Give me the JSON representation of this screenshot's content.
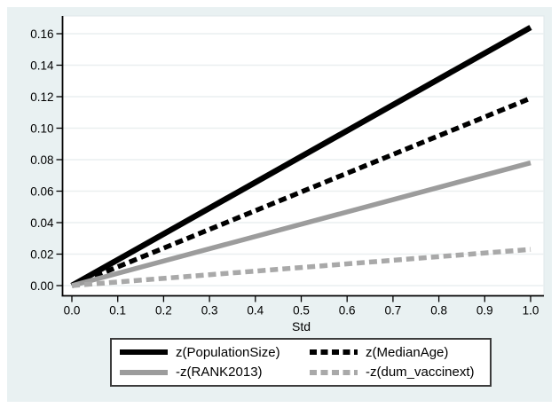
{
  "colors": {
    "page_background": "#ffffff",
    "graph_background": "#e9f1f2",
    "plot_background": "#ffffff",
    "plot_edge": "#dfe7e9",
    "gridline": "#eaeff0",
    "axis": "#000000",
    "tick_text": "#000000",
    "legend_background": "#ffffff",
    "legend_border": "#3c3c3c"
  },
  "chart_data": {
    "type": "line",
    "title": "",
    "xlabel": "Std",
    "ylabel": "",
    "xlim": [
      0.0,
      1.0
    ],
    "ylim": [
      0.0,
      0.172
    ],
    "grid": "horizontal",
    "legend_position": "bottom",
    "x_ticks": [
      0.0,
      0.1,
      0.2,
      0.3,
      0.4,
      0.5,
      0.6,
      0.7,
      0.8,
      0.9,
      1.0
    ],
    "x_tick_labels": [
      "0.0",
      "0.1",
      "0.2",
      "0.3",
      "0.4",
      "0.5",
      "0.6",
      "0.7",
      "0.8",
      "0.9",
      "1.0"
    ],
    "y_ticks": [
      0.0,
      0.02,
      0.04,
      0.06,
      0.08,
      0.1,
      0.12,
      0.14,
      0.16
    ],
    "y_tick_labels": [
      "0.00",
      "0.02",
      "0.04",
      "0.06",
      "0.08",
      "0.10",
      "0.12",
      "0.14",
      "0.16"
    ],
    "series": [
      {
        "name": "z(PopulationSize)",
        "color": "#000000",
        "line_style": "solid",
        "line_width": 6.5,
        "x": [
          0.0,
          1.0
        ],
        "y": [
          0.0,
          0.164
        ]
      },
      {
        "name": "z(MedianAge)",
        "color": "#000000",
        "line_style": "dashed",
        "line_width": 5.5,
        "x": [
          0.0,
          1.0
        ],
        "y": [
          0.0,
          0.119
        ]
      },
      {
        "name": "-z(RANK2013)",
        "color": "#9c9c9c",
        "line_style": "solid",
        "line_width": 5.5,
        "x": [
          0.0,
          1.0
        ],
        "y": [
          0.0,
          0.078
        ]
      },
      {
        "name": "-z(dum_vaccinext)",
        "color": "#a9a9a9",
        "line_style": "dashed",
        "line_width": 5.5,
        "x": [
          0.0,
          1.0
        ],
        "y": [
          0.0,
          0.023
        ]
      }
    ]
  }
}
